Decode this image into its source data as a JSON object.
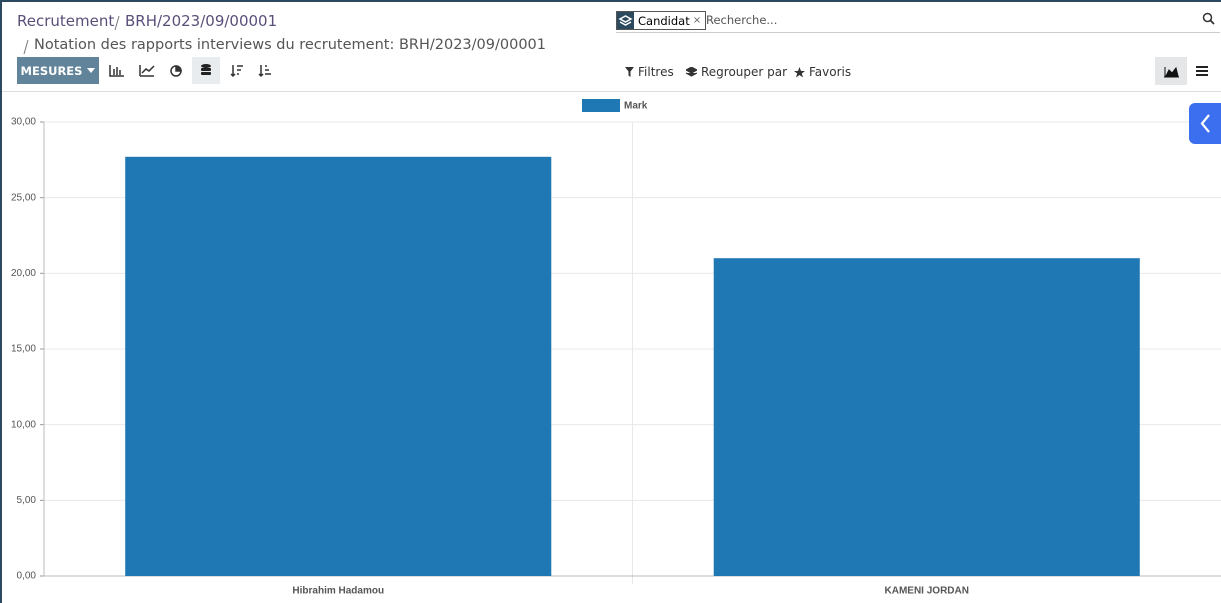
{
  "breadcrumb": [
    "Recrutement",
    "BRH/2023/09/00001",
    "Notation des rapports interviews du recrutement: BRH/2023/09/00001"
  ],
  "search": {
    "facet": "Candidat",
    "facet_remove": "×",
    "placeholder": "Recherche..."
  },
  "toolbar": {
    "measures": "MESURES",
    "filters": "Filtres",
    "group_by": "Regrouper par",
    "favorites": "Favoris"
  },
  "chart_data": {
    "type": "bar",
    "categories": [
      "Hibrahim Hadamou",
      "KAMENI JORDAN"
    ],
    "series": [
      {
        "name": "Mark",
        "color": "#1f77b4",
        "values": [
          27.7,
          21
        ]
      }
    ],
    "ylim": [
      0,
      30
    ],
    "yticks": [
      {
        "value": 0,
        "label": "0,00"
      },
      {
        "value": 5,
        "label": "5,00"
      },
      {
        "value": 10,
        "label": "10,00"
      },
      {
        "value": 15,
        "label": "15,00"
      },
      {
        "value": 20,
        "label": "20,00"
      },
      {
        "value": 25,
        "label": "25,00"
      },
      {
        "value": 30,
        "label": "30,00"
      }
    ],
    "grid": true,
    "legend": "top"
  }
}
